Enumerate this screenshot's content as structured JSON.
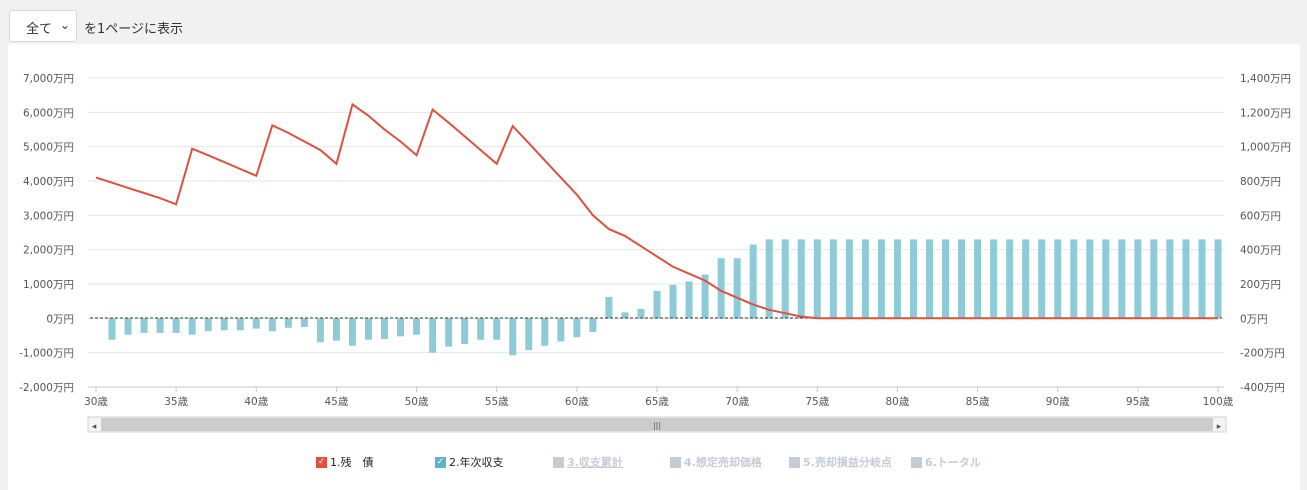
{
  "toolbar": {
    "select_value": "全て",
    "per_page_label": "を1ページに表示"
  },
  "chart_data": {
    "type": "bar+line",
    "x_label_suffix": "歳",
    "x_ticks": [
      30,
      35,
      40,
      45,
      50,
      55,
      60,
      65,
      70,
      75,
      80,
      85,
      90,
      95,
      100
    ],
    "ages": [
      30,
      31,
      32,
      33,
      34,
      35,
      36,
      37,
      38,
      39,
      40,
      41,
      42,
      43,
      44,
      45,
      46,
      47,
      48,
      49,
      50,
      51,
      52,
      53,
      54,
      55,
      56,
      57,
      58,
      59,
      60,
      61,
      62,
      63,
      64,
      65,
      66,
      67,
      68,
      69,
      70,
      71,
      72,
      73,
      74,
      75,
      76,
      77,
      78,
      79,
      80,
      81,
      82,
      83,
      84,
      85,
      86,
      87,
      88,
      89,
      90,
      91,
      92,
      93,
      94,
      95,
      96,
      97,
      98,
      99,
      100
    ],
    "left_axis": {
      "ticks": [
        "-2,000万円",
        "-1,000万円",
        "0万円",
        "1,000万円",
        "2,000万円",
        "3,000万円",
        "4,000万円",
        "5,000万円",
        "6,000万円",
        "7,000万円"
      ],
      "ylim": [
        -2000,
        7000
      ]
    },
    "right_axis": {
      "ticks": [
        "-400万円",
        "-200万円",
        "0万円",
        "200万円",
        "400万円",
        "600万円",
        "800万円",
        "1,000万円",
        "1,200万円",
        "1,400万円"
      ],
      "ylim": [
        -400,
        1400
      ]
    },
    "series": [
      {
        "name": "1.残　債",
        "kind": "line",
        "axis": "left",
        "color": "#e05040",
        "values": [
          4100,
          3950,
          3800,
          3650,
          3500,
          3320,
          4940,
          4750,
          4550,
          4350,
          4150,
          5620,
          5400,
          5150,
          4900,
          4500,
          6230,
          5900,
          5500,
          5150,
          4750,
          6080,
          5700,
          5300,
          4900,
          4500,
          5600,
          5100,
          4600,
          4100,
          3600,
          3000,
          2600,
          2400,
          2100,
          1800,
          1500,
          1300,
          1100,
          800,
          600,
          400,
          250,
          150,
          50,
          0,
          0,
          0,
          0,
          0,
          0,
          0,
          0,
          0,
          0,
          0,
          0,
          0,
          0,
          0,
          0,
          0,
          0,
          0,
          0,
          0,
          0,
          0,
          0,
          0,
          0
        ]
      },
      {
        "name": "2.年次収支",
        "kind": "bar",
        "axis": "right",
        "color": "#8ecbd8",
        "values": [
          0,
          -125,
          -95,
          -85,
          -85,
          -85,
          -95,
          -75,
          -70,
          -70,
          -60,
          -75,
          -55,
          -50,
          -140,
          -130,
          -160,
          -125,
          -120,
          -105,
          -95,
          -200,
          -165,
          -150,
          -125,
          -125,
          -215,
          -185,
          -160,
          -135,
          -110,
          -80,
          125,
          35,
          55,
          160,
          195,
          215,
          255,
          350,
          350,
          430,
          460,
          460,
          460,
          460,
          460,
          460,
          460,
          460,
          460,
          460,
          460,
          460,
          460,
          460,
          460,
          460,
          460,
          460,
          460,
          460,
          460,
          460,
          460,
          460,
          460,
          460,
          460,
          460,
          460
        ]
      }
    ]
  },
  "legend": [
    {
      "label": "1.残　債",
      "active": true,
      "color": "#e05040"
    },
    {
      "label": "2.年次収支",
      "active": true,
      "color": "#5fb3c7"
    },
    {
      "label": "3.収支累計",
      "active": false,
      "color": "#c5ccd6",
      "underline": true
    },
    {
      "label": "4.想定売却価格",
      "active": false,
      "color": "#c5ccd6"
    },
    {
      "label": "5.売却損益分岐点",
      "active": false,
      "color": "#c5ccd6"
    },
    {
      "label": "6.トータル",
      "active": false,
      "color": "#c5ccd6"
    }
  ],
  "scrollbar": {
    "left_arrow": "◂",
    "right_arrow": "▸",
    "grip": "|||"
  }
}
